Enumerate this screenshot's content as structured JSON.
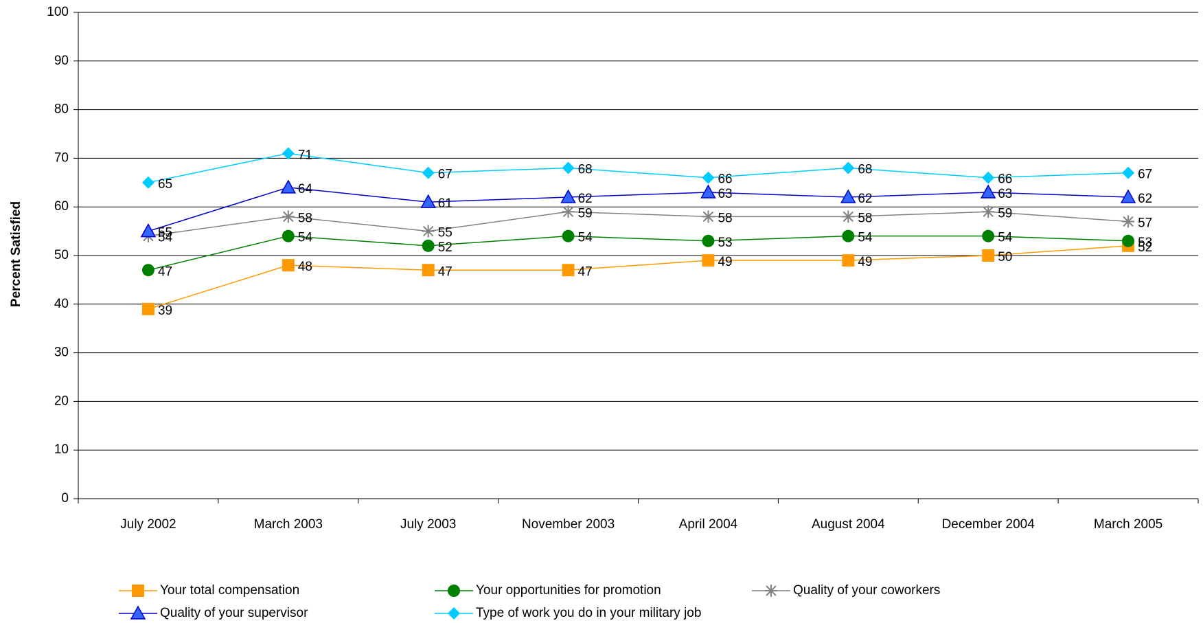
{
  "chart_data": {
    "type": "line",
    "y_label": "Percent Satisfied",
    "categories": [
      "July 2002",
      "March 2003",
      "July 2003",
      "November 2003",
      "April 2004",
      "August 2004",
      "December 2004",
      "March 2005"
    ],
    "ylim": [
      0,
      100
    ],
    "yticks": [
      0,
      10,
      20,
      30,
      40,
      50,
      60,
      70,
      80,
      90,
      100
    ],
    "grid": true,
    "series": [
      {
        "name": "Your total compensation",
        "color": "#FF9900",
        "marker": "square",
        "values": [
          39,
          48,
          47,
          47,
          49,
          49,
          50,
          52
        ]
      },
      {
        "name": "Your opportunities for promotion",
        "color": "#008000",
        "marker": "circle",
        "values": [
          47,
          54,
          52,
          54,
          53,
          54,
          54,
          53
        ]
      },
      {
        "name": "Quality of your coworkers",
        "color": "#808080",
        "marker": "star",
        "values": [
          54,
          58,
          55,
          59,
          58,
          58,
          59,
          57
        ]
      },
      {
        "name": "Quality of your supervisor",
        "color": "#0000CC",
        "marker": "triangle",
        "values": [
          55,
          64,
          61,
          62,
          63,
          62,
          63,
          62
        ]
      },
      {
        "name": "Type of work you do in your military job",
        "color": "#00CCFF",
        "marker": "diamond",
        "values": [
          65,
          71,
          67,
          68,
          66,
          68,
          66,
          67
        ]
      }
    ]
  }
}
